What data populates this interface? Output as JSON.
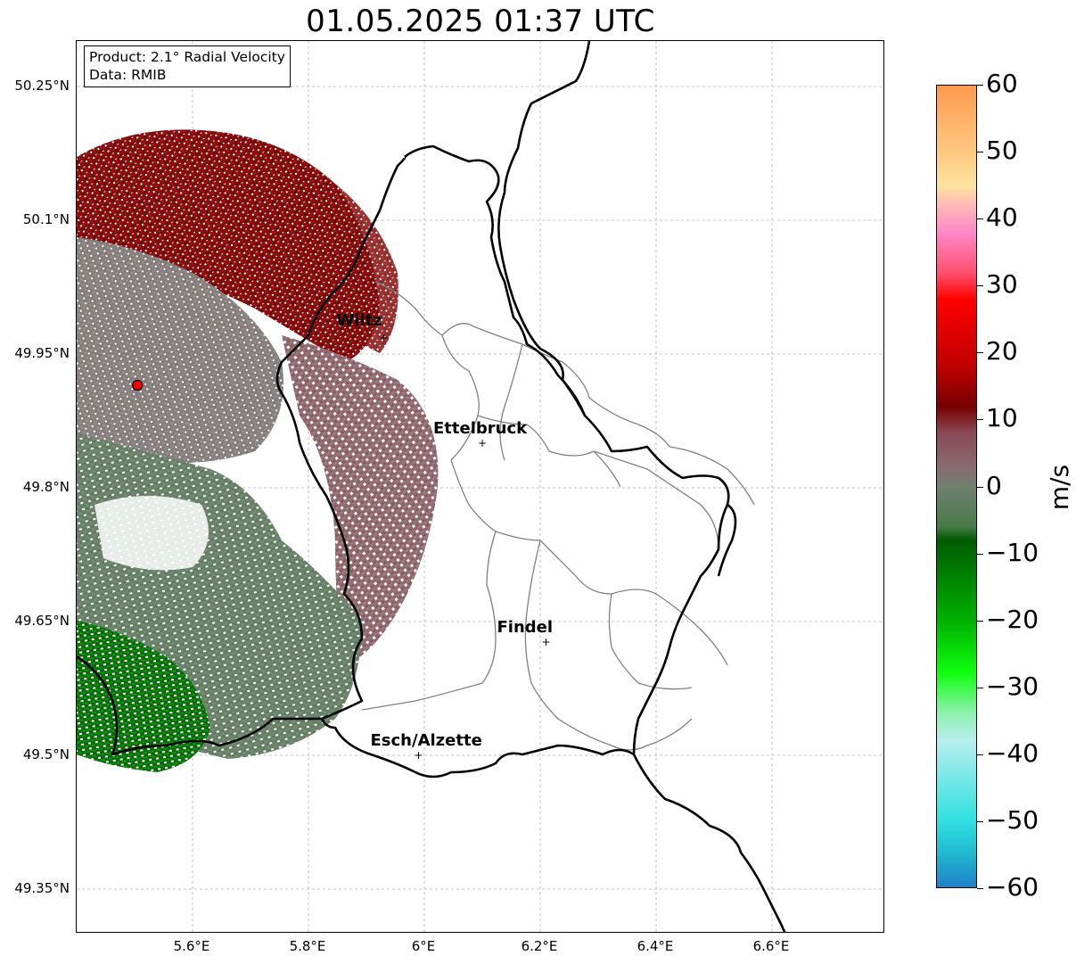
{
  "title": "01.05.2025 01:37 UTC",
  "info_box": {
    "product_line": "Product: 2.1° Radial Velocity",
    "data_line": "Data: RMIB"
  },
  "map": {
    "lon_range": [
      5.4,
      6.8
    ],
    "lat_range": [
      49.3,
      50.3
    ],
    "latitude_ticks": [
      {
        "value": 50.25,
        "label": "50.25°N"
      },
      {
        "value": 50.1,
        "label": "50.1°N"
      },
      {
        "value": 49.95,
        "label": "49.95°N"
      },
      {
        "value": 49.8,
        "label": "49.8°N"
      },
      {
        "value": 49.65,
        "label": "49.65°N"
      },
      {
        "value": 49.5,
        "label": "49.5°N"
      },
      {
        "value": 49.35,
        "label": "49.35°N"
      }
    ],
    "longitude_ticks": [
      {
        "value": 5.6,
        "label": "5.6°E"
      },
      {
        "value": 5.8,
        "label": "5.8°E"
      },
      {
        "value": 6.0,
        "label": "6°E"
      },
      {
        "value": 6.2,
        "label": "6.2°E"
      },
      {
        "value": 6.4,
        "label": "6.4°E"
      },
      {
        "value": 6.6,
        "label": "6.6°E"
      }
    ],
    "gridlines": true,
    "radar_site": {
      "lon": 5.505,
      "lat": 49.915,
      "color": "#ff0000"
    },
    "cities": [
      {
        "name": "Wiltz",
        "lon": 5.93,
        "lat": 49.967
      },
      {
        "name": "Ettelbruck",
        "lon": 6.1,
        "lat": 49.849
      },
      {
        "name": "Findel",
        "lon": 6.21,
        "lat": 49.626
      },
      {
        "name": "Esch/Alzette",
        "lon": 5.99,
        "lat": 49.499
      }
    ]
  },
  "colorbar": {
    "unit": "m/s",
    "min": -60,
    "max": 60,
    "ticks": [
      {
        "value": 60,
        "label": "60"
      },
      {
        "value": 50,
        "label": "50"
      },
      {
        "value": 40,
        "label": "40"
      },
      {
        "value": 30,
        "label": "30"
      },
      {
        "value": 20,
        "label": "20"
      },
      {
        "value": 10,
        "label": "10"
      },
      {
        "value": 0,
        "label": "0"
      },
      {
        "value": -10,
        "label": "−10"
      },
      {
        "value": -20,
        "label": "−20"
      },
      {
        "value": -30,
        "label": "−30"
      },
      {
        "value": -40,
        "label": "−40"
      },
      {
        "value": -50,
        "label": "−50"
      },
      {
        "value": -60,
        "label": "−60"
      }
    ],
    "color_stops": [
      {
        "value": 60,
        "color": "#ff9a50"
      },
      {
        "value": 50,
        "color": "#ffc880"
      },
      {
        "value": 45,
        "color": "#ffe4a0"
      },
      {
        "value": 42,
        "color": "#ffb8b8"
      },
      {
        "value": 38,
        "color": "#ff88c8"
      },
      {
        "value": 32,
        "color": "#ff5070"
      },
      {
        "value": 28,
        "color": "#ff0000"
      },
      {
        "value": 18,
        "color": "#c00000"
      },
      {
        "value": 12,
        "color": "#780000"
      },
      {
        "value": 8,
        "color": "#8a4a55"
      },
      {
        "value": 3,
        "color": "#8a6a72"
      },
      {
        "value": 0,
        "color": "#708070"
      },
      {
        "value": -6,
        "color": "#4a7a4a"
      },
      {
        "value": -8,
        "color": "#005a00"
      },
      {
        "value": -20,
        "color": "#00b000"
      },
      {
        "value": -28,
        "color": "#10ff10"
      },
      {
        "value": -34,
        "color": "#90f0b0"
      },
      {
        "value": -38,
        "color": "#b8eeee"
      },
      {
        "value": -50,
        "color": "#30e0e0"
      },
      {
        "value": -55,
        "color": "#20b8d0"
      },
      {
        "value": -60,
        "color": "#2080c8"
      }
    ]
  }
}
